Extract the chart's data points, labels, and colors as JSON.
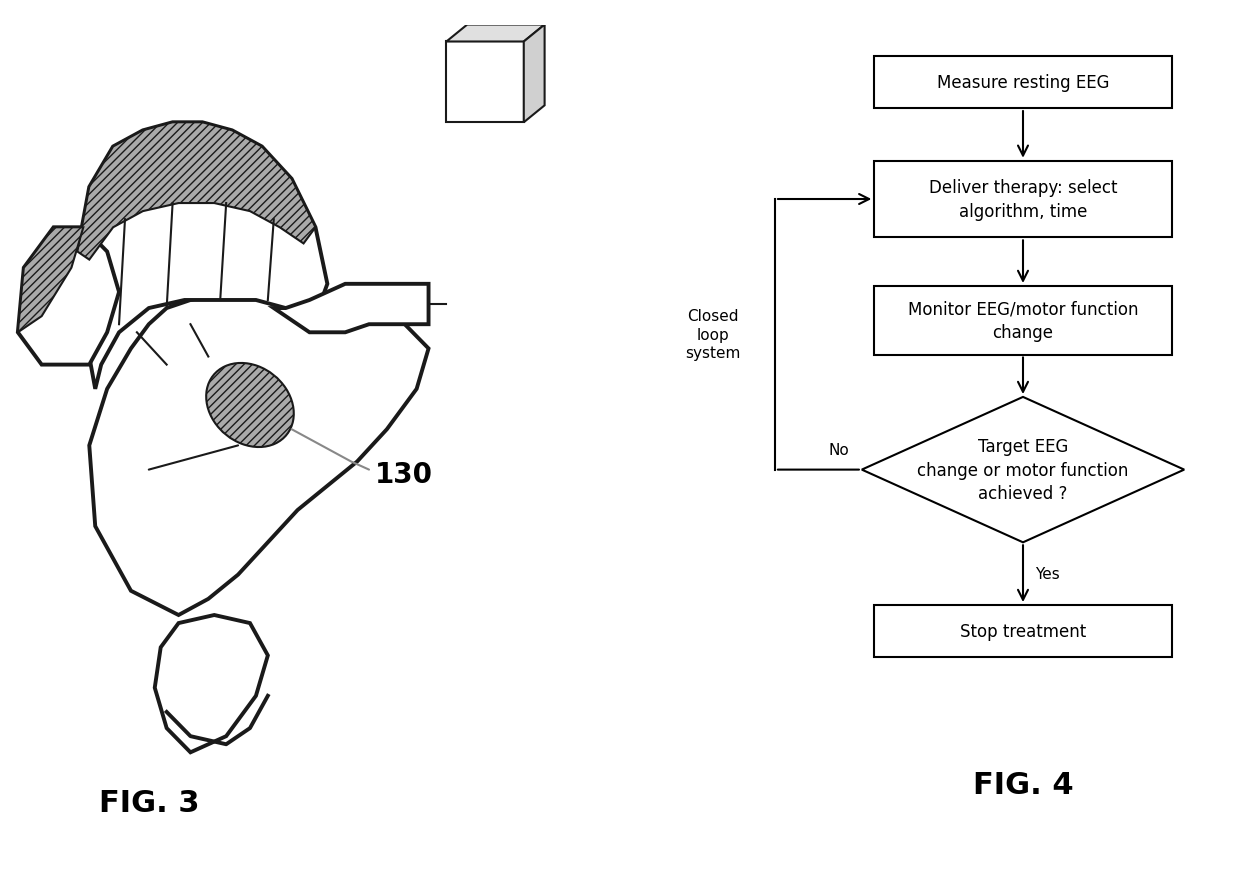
{
  "fig3_label": "FIG. 3",
  "fig4_label": "FIG. 4",
  "label_130": "130",
  "flowchart": {
    "box1": "Measure resting EEG",
    "box2": "Deliver therapy: select\nalgorithm, time",
    "box3": "Monitor EEG/motor function\nchange",
    "diamond": "Target EEG\nchange or motor function\nachieved ?",
    "box4": "Stop treatment",
    "label_no": "No",
    "label_yes": "Yes",
    "label_closed_loop": "Closed\nloop\nsystem"
  },
  "bg_color": "#ffffff",
  "text_color": "#000000",
  "font_size_box": 12,
  "font_size_fignum": 22,
  "gray_fill": "#c0c0c0",
  "hatch_pattern": "////"
}
